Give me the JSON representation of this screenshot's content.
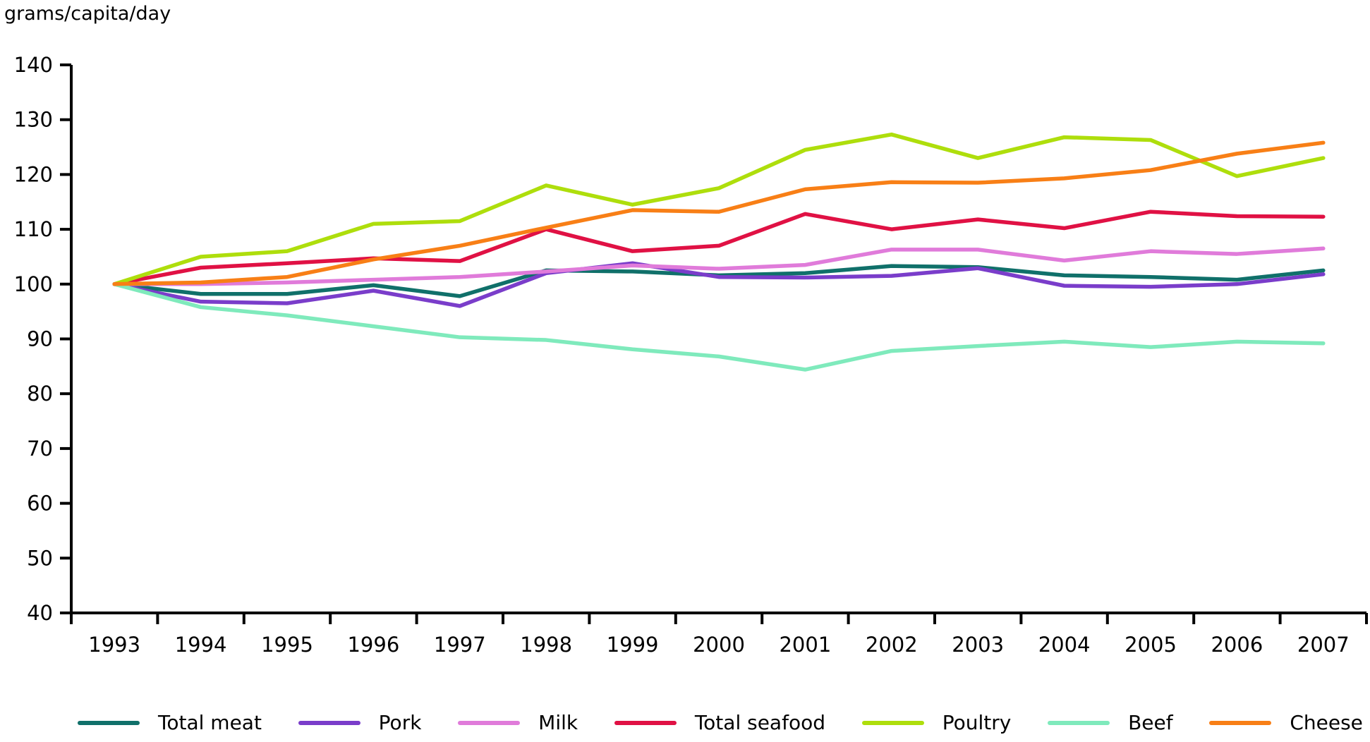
{
  "page": {
    "heading": "grams/capita/day"
  },
  "chart_data": {
    "type": "line",
    "title": "grams/capita/day",
    "xlabel": "",
    "ylabel": "grams/capita/day",
    "ylim": [
      40,
      140
    ],
    "ytick_step": 10,
    "grid": false,
    "legend_position": "bottom",
    "axis_color": "#000000",
    "x": [
      1993,
      1994,
      1995,
      1996,
      1997,
      1998,
      1999,
      2000,
      2001,
      2002,
      2003,
      2004,
      2005,
      2006,
      2007
    ],
    "series": [
      {
        "name": "Total meat",
        "color": "#10706a",
        "values": [
          100,
          98.2,
          98.2,
          99.8,
          97.8,
          102.5,
          102.3,
          101.6,
          102.0,
          103.3,
          103.1,
          101.6,
          101.3,
          100.8,
          102.5
        ]
      },
      {
        "name": "Pork",
        "color": "#7a3dca",
        "values": [
          100,
          96.8,
          96.5,
          98.8,
          96.0,
          102.0,
          103.8,
          101.3,
          101.2,
          101.5,
          102.9,
          99.7,
          99.5,
          100.0,
          101.8
        ]
      },
      {
        "name": "Milk",
        "color": "#e07bda",
        "values": [
          100,
          100.0,
          100.3,
          100.8,
          101.3,
          102.3,
          103.4,
          102.8,
          103.5,
          106.3,
          106.3,
          104.3,
          106.0,
          105.5,
          106.5
        ]
      },
      {
        "name": "Total seafood",
        "color": "#e01144",
        "values": [
          100,
          103.0,
          103.8,
          104.7,
          104.2,
          110.0,
          106.0,
          107.0,
          112.8,
          110.0,
          111.8,
          110.2,
          113.2,
          112.4,
          112.3
        ]
      },
      {
        "name": "Poultry",
        "color": "#aede0c",
        "values": [
          100,
          105.0,
          106.0,
          111.0,
          111.5,
          118.0,
          114.5,
          117.5,
          124.5,
          127.3,
          123.0,
          126.8,
          126.3,
          119.7,
          123.0
        ]
      },
      {
        "name": "Beef",
        "color": "#7feabc",
        "values": [
          100,
          95.8,
          94.3,
          92.3,
          90.3,
          89.8,
          88.1,
          86.8,
          84.4,
          87.8,
          88.7,
          89.5,
          88.5,
          89.5,
          89.2
        ]
      },
      {
        "name": "Cheese",
        "color": "#f87f16",
        "values": [
          100,
          100.3,
          101.3,
          104.5,
          107.0,
          110.3,
          113.5,
          113.2,
          117.3,
          118.6,
          118.5,
          119.3,
          120.8,
          123.8,
          125.8
        ]
      }
    ]
  }
}
